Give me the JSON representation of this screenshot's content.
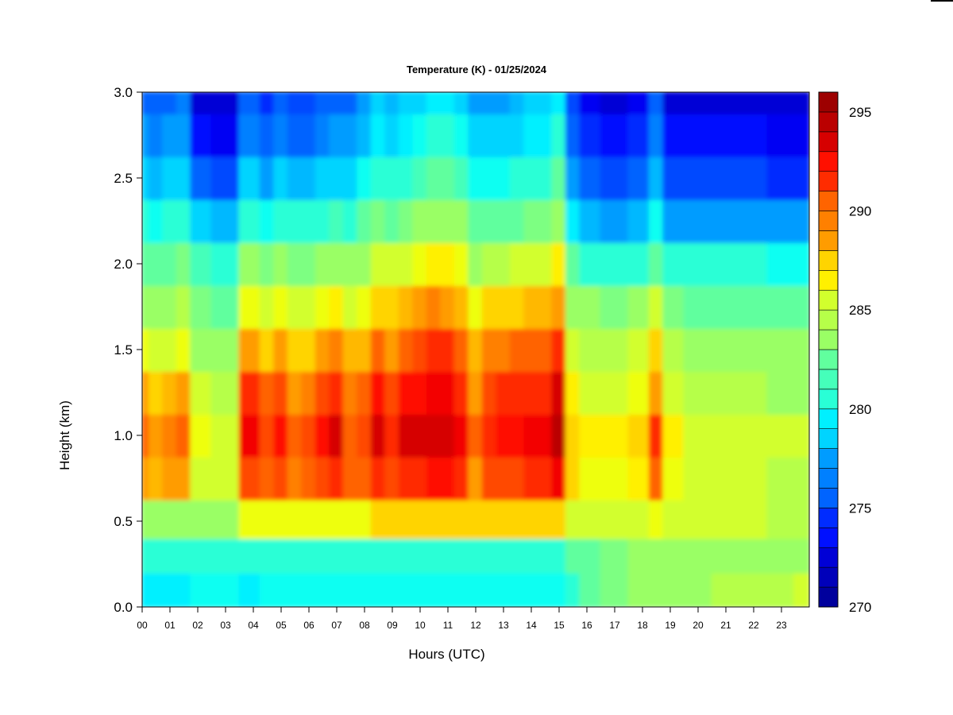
{
  "chart_data": {
    "type": "heatmap",
    "title": "Temperature (K) - 01/25/2024",
    "xlabel": "Hours (UTC)",
    "ylabel": "Height (km)",
    "x_ticks": [
      "00",
      "01",
      "02",
      "03",
      "04",
      "05",
      "06",
      "07",
      "08",
      "09",
      "10",
      "11",
      "12",
      "13",
      "14",
      "15",
      "16",
      "17",
      "18",
      "19",
      "20",
      "21",
      "22",
      "23"
    ],
    "xlim": [
      0,
      24
    ],
    "y_ticks": [
      "0.0",
      "0.5",
      "1.0",
      "1.5",
      "2.0",
      "2.5",
      "3.0"
    ],
    "ylim": [
      0,
      3
    ],
    "colorbar": {
      "ticks": [
        "270",
        "275",
        "280",
        "285",
        "290",
        "295"
      ],
      "range": [
        270,
        296
      ],
      "levels": 26,
      "colors": [
        "#000080",
        "#00009d",
        "#0000ba",
        "#0000d6",
        "#0000f3",
        "#0010ff",
        "#002cff",
        "#0048ff",
        "#0064ff",
        "#0080ff",
        "#009cff",
        "#00b8ff",
        "#00d4ff",
        "#00f0ff",
        "#0dfff2",
        "#29ffd6",
        "#45ffba",
        "#61ff9e",
        "#7dff82",
        "#9aff65",
        "#b6ff49",
        "#d2ff2d",
        "#eeff11",
        "#fff000",
        "#ffd400",
        "#ffb800",
        "#ff9c00",
        "#ff8000",
        "#ff6400",
        "#ff4800",
        "#ff2c00",
        "#ff1000",
        "#f30000",
        "#d60000",
        "#ba0000",
        "#9d0000",
        "#800000"
      ]
    },
    "grid": false,
    "x": [
      0.0,
      0.5,
      1.0,
      1.5,
      2.0,
      3.0,
      4.0,
      4.5,
      5.0,
      5.5,
      6.0,
      6.5,
      7.0,
      7.5,
      8.0,
      8.5,
      9.0,
      9.5,
      10.0,
      10.5,
      11.0,
      11.5,
      12.0,
      12.5,
      13.0,
      13.5,
      14.0,
      14.5,
      15.0,
      15.5,
      16.0,
      17.0,
      18.0,
      18.5,
      19.0,
      20.0,
      21.0,
      22.0,
      23.0,
      23.9
    ],
    "y": [
      0.1,
      0.3,
      0.5,
      0.75,
      1.0,
      1.25,
      1.5,
      1.75,
      2.0,
      2.25,
      2.5,
      2.75,
      3.0
    ],
    "z": [
      [
        279.5,
        279.5,
        279.5,
        279.5,
        280,
        280,
        279.5,
        280,
        280,
        280,
        280,
        280,
        280,
        280,
        280,
        280,
        280,
        280,
        280,
        280,
        280,
        280,
        280,
        280,
        280,
        280,
        280,
        280,
        280,
        281,
        282,
        283,
        283.5,
        283.5,
        284,
        284,
        284.5,
        284.5,
        284.5,
        285
      ],
      [
        281,
        281,
        281,
        281,
        281,
        281,
        281,
        281,
        281,
        281,
        281,
        281,
        281,
        281,
        281,
        281,
        281,
        281,
        281,
        281,
        281,
        281,
        281,
        281,
        281,
        281,
        281,
        281,
        281,
        282,
        282.5,
        283,
        283.5,
        283.5,
        283.5,
        283.5,
        283.5,
        284,
        284,
        284
      ],
      [
        284,
        284,
        284,
        284,
        283.5,
        283.5,
        286,
        286,
        286,
        286,
        286,
        286,
        286,
        286,
        286,
        287,
        287,
        287,
        287,
        287,
        287,
        287,
        287,
        287,
        287,
        287,
        287,
        287,
        287,
        285,
        285,
        285,
        285.5,
        286,
        285.5,
        285,
        285,
        285,
        284.5,
        284.5
      ],
      [
        289,
        288,
        288.5,
        289,
        285.5,
        285,
        291,
        290,
        291,
        289.5,
        290,
        291,
        291.5,
        290,
        290,
        292,
        291,
        292,
        292,
        292.5,
        292.5,
        292,
        289,
        291,
        291,
        291,
        291.5,
        291.5,
        293,
        287,
        286,
        286,
        286.5,
        290,
        286,
        285,
        285,
        285,
        284.5,
        284.5
      ],
      [
        290,
        289,
        289.5,
        290,
        286,
        285.5,
        293,
        291,
        292.5,
        290.5,
        291,
        292.5,
        293.5,
        290.5,
        291,
        293.5,
        292,
        293.5,
        293.5,
        294,
        294,
        293,
        290,
        292,
        292.5,
        292.5,
        293,
        293,
        294.5,
        287.5,
        286.5,
        286.5,
        287,
        291.5,
        286.5,
        285.5,
        285.5,
        285.5,
        285,
        285
      ],
      [
        288.5,
        287.5,
        288,
        288.5,
        285,
        284.5,
        291.5,
        290,
        291,
        289,
        289.5,
        291,
        292,
        289.5,
        290,
        292.5,
        291,
        292.5,
        292.5,
        293,
        293,
        292,
        289,
        291,
        291.5,
        291.5,
        292,
        292,
        293.5,
        286.5,
        285.5,
        285.5,
        286,
        289,
        285.5,
        284.5,
        284.5,
        284.5,
        284,
        284
      ],
      [
        286,
        285,
        285.5,
        286,
        284,
        283.5,
        288.5,
        287.5,
        288.5,
        287,
        287.5,
        288.5,
        289.5,
        288,
        288,
        290,
        289,
        290.5,
        291,
        291.5,
        291.5,
        290.5,
        288,
        289.5,
        289.5,
        290,
        290.5,
        290.5,
        291.5,
        285,
        284.5,
        284.5,
        285,
        287,
        284.5,
        284,
        284,
        284,
        283.5,
        283.5
      ],
      [
        284,
        283.5,
        284,
        284.5,
        283,
        282.5,
        286,
        285.5,
        286,
        285,
        285.5,
        286,
        286.5,
        285.5,
        286,
        287.5,
        287,
        288,
        289,
        289.5,
        289,
        288,
        286,
        287,
        287,
        287.5,
        288,
        288,
        289,
        284,
        283.5,
        283,
        283.5,
        285,
        283,
        282.5,
        282.5,
        282.5,
        282,
        282
      ],
      [
        282.5,
        282,
        282.5,
        283,
        281.5,
        281,
        283.5,
        283,
        283.5,
        283,
        283,
        283.5,
        284,
        283.5,
        284,
        285.5,
        285,
        285.5,
        286,
        286.5,
        286.5,
        286,
        284,
        284.5,
        284.5,
        285,
        285.5,
        285.5,
        286.5,
        282,
        281,
        280.5,
        281,
        282.5,
        280.5,
        280.5,
        280.5,
        280.5,
        280,
        280
      ],
      [
        280.5,
        280,
        280.5,
        281,
        278.5,
        278,
        281,
        280,
        281,
        280.5,
        280.5,
        281,
        281.5,
        281,
        282,
        283,
        282.5,
        283,
        283.5,
        284,
        284,
        283.5,
        282,
        282,
        282,
        282.5,
        283,
        283,
        284,
        279.5,
        278,
        277.5,
        278,
        280,
        277.5,
        277.5,
        277.5,
        277.5,
        277,
        277
      ],
      [
        278.5,
        278,
        278.5,
        279,
        275.5,
        275,
        278.5,
        277.5,
        278.5,
        278,
        278,
        278.5,
        279,
        279,
        280,
        281,
        280.5,
        281,
        281.5,
        282,
        282,
        281.5,
        280,
        280,
        280,
        280.5,
        281,
        281,
        282,
        277.5,
        275.5,
        275,
        275.5,
        278,
        275,
        275,
        275,
        275,
        274.5,
        274.5
      ],
      [
        277,
        276.5,
        277,
        277.5,
        273.5,
        273,
        276.5,
        275.5,
        276.5,
        276,
        276,
        276.5,
        277,
        277,
        278,
        279.5,
        279,
        279.5,
        280,
        280.5,
        280.5,
        280,
        278.5,
        278.5,
        278.5,
        279,
        279.5,
        279.5,
        280.5,
        276,
        274,
        273.5,
        274,
        276.5,
        273.5,
        273.5,
        273.5,
        273.5,
        273,
        273
      ],
      [
        276,
        275.5,
        276,
        276.5,
        272.5,
        272,
        275.5,
        274.5,
        275.5,
        275,
        275,
        275.5,
        276,
        276,
        277,
        278.5,
        278,
        278.5,
        279,
        279.5,
        279.5,
        279,
        277.5,
        277.5,
        277.5,
        278,
        278.5,
        278.5,
        279.5,
        275,
        273,
        272.5,
        273,
        275.5,
        272.5,
        272.5,
        272.5,
        272.5,
        272,
        272
      ]
    ]
  }
}
